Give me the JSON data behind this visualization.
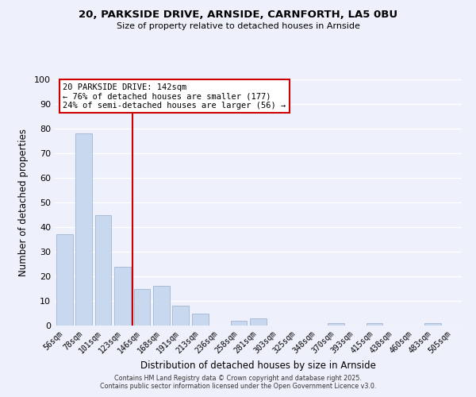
{
  "title": "20, PARKSIDE DRIVE, ARNSIDE, CARNFORTH, LA5 0BU",
  "subtitle": "Size of property relative to detached houses in Arnside",
  "xlabel": "Distribution of detached houses by size in Arnside",
  "ylabel": "Number of detached properties",
  "bar_labels": [
    "56sqm",
    "78sqm",
    "101sqm",
    "123sqm",
    "146sqm",
    "168sqm",
    "191sqm",
    "213sqm",
    "236sqm",
    "258sqm",
    "281sqm",
    "303sqm",
    "325sqm",
    "348sqm",
    "370sqm",
    "393sqm",
    "415sqm",
    "438sqm",
    "460sqm",
    "483sqm",
    "505sqm"
  ],
  "bar_values": [
    37,
    78,
    45,
    24,
    15,
    16,
    8,
    5,
    0,
    2,
    3,
    0,
    0,
    0,
    1,
    0,
    1,
    0,
    0,
    1,
    0
  ],
  "bar_color": "#c8d8ee",
  "bar_edge_color": "#a8bcd8",
  "vline_color": "#cc0000",
  "annotation_line1": "20 PARKSIDE DRIVE: 142sqm",
  "annotation_line2": "← 76% of detached houses are smaller (177)",
  "annotation_line3": "24% of semi-detached houses are larger (56) →",
  "annotation_box_color": "#ffffff",
  "annotation_box_edge": "#cc0000",
  "ylim": [
    0,
    100
  ],
  "yticks": [
    0,
    10,
    20,
    30,
    40,
    50,
    60,
    70,
    80,
    90,
    100
  ],
  "background_color": "#eef1fb",
  "grid_color": "#ffffff",
  "footer1": "Contains HM Land Registry data © Crown copyright and database right 2025.",
  "footer2": "Contains public sector information licensed under the Open Government Licence v3.0."
}
